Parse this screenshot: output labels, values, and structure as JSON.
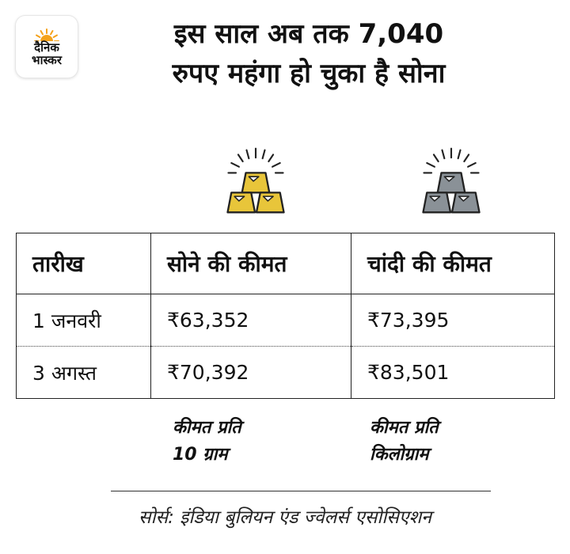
{
  "logo": {
    "line1": "दैनिक",
    "line2": "भास्कर",
    "sun_color": "#f5a21b"
  },
  "title": {
    "line1": "इस साल अब तक 7,040",
    "line2": "रुपए महंगा हो चुका है सोना"
  },
  "icons": {
    "gold": "gold-bars-icon",
    "silver": "silver-bars-icon"
  },
  "colors": {
    "gold": "#e8c53a",
    "silver": "#8a9197",
    "outline": "#222222"
  },
  "table": {
    "headers": [
      "तारीख",
      "सोने की कीमत",
      "चांदी की कीमत"
    ],
    "rows": [
      [
        "1 जनवरी",
        "₹63,352",
        "₹73,395"
      ],
      [
        "3 अगस्त",
        "₹70,392",
        "₹83,501"
      ]
    ]
  },
  "notes": {
    "gold": {
      "line1": "कीमत प्रति",
      "line2": "10 ग्राम"
    },
    "silver": {
      "line1": "कीमत प्रति",
      "line2": "किलोग्राम"
    }
  },
  "source": "सोर्स: इंडिया बुलियन एंड ज्वेलर्स एसोसिएशन"
}
